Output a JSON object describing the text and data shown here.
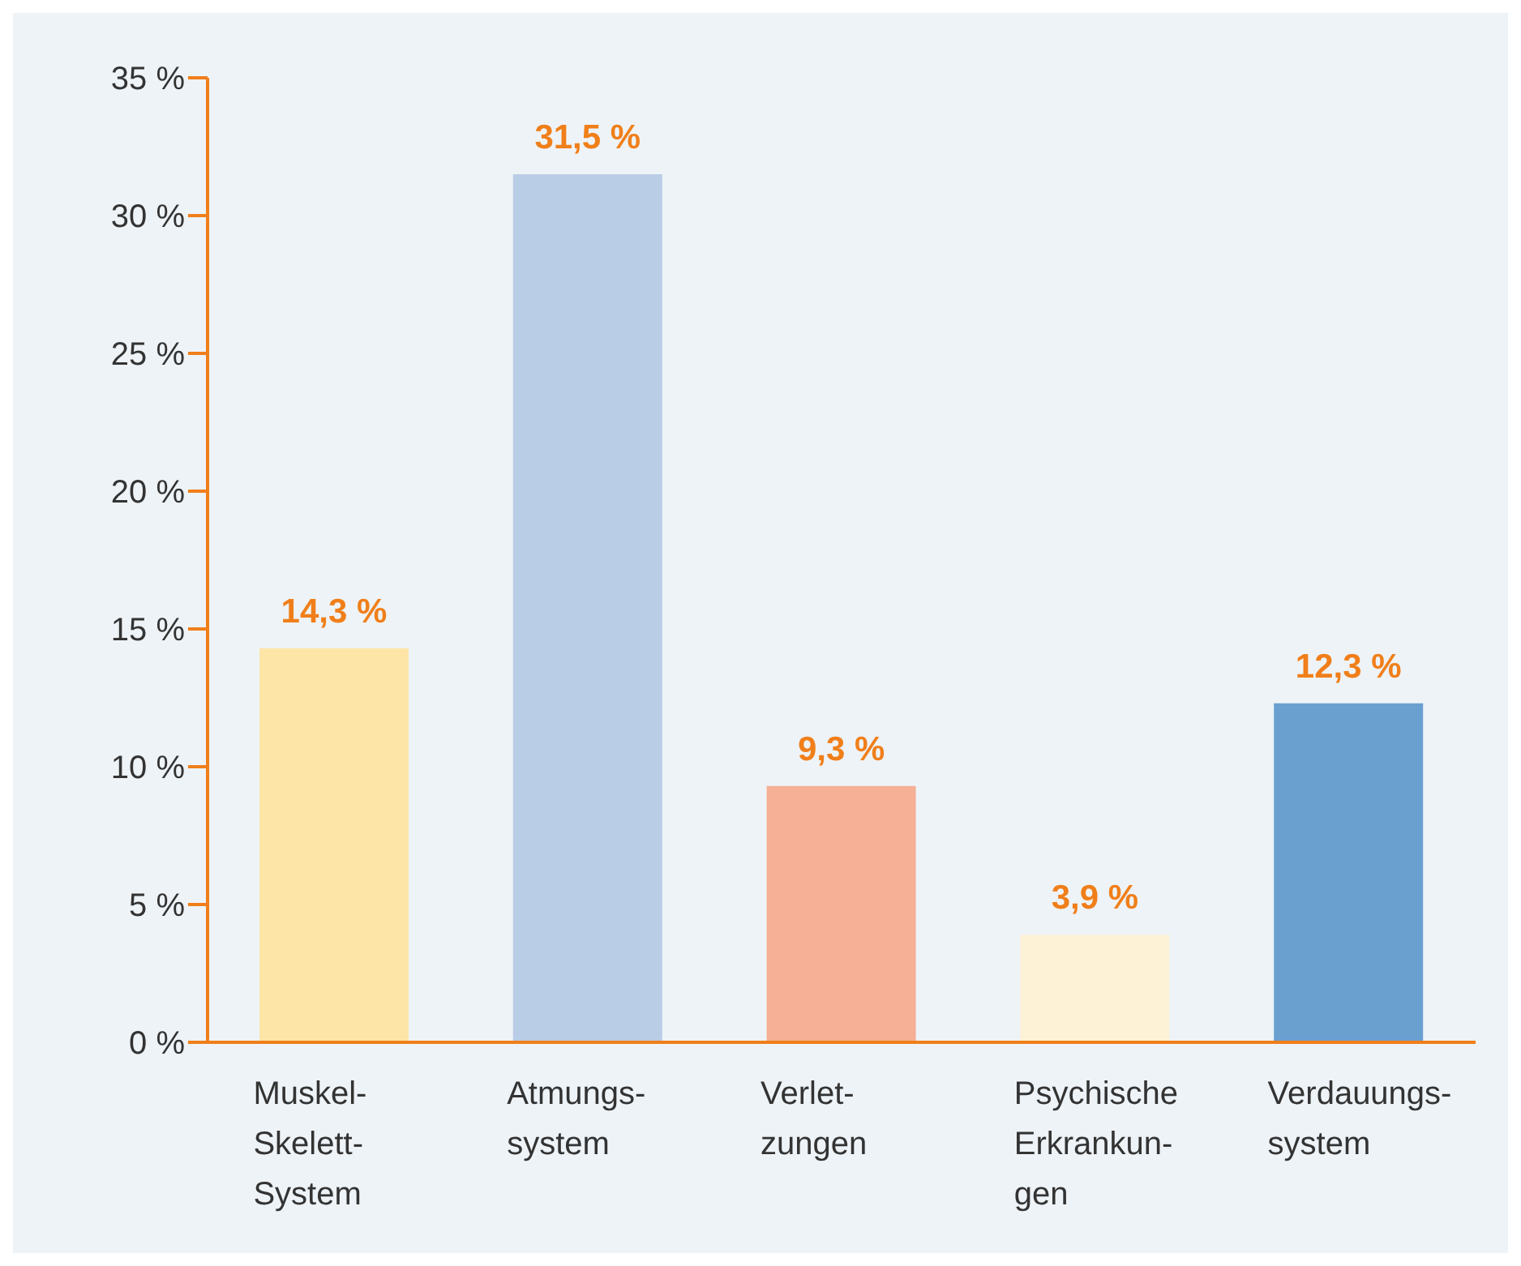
{
  "chart_data": {
    "type": "bar",
    "categories": [
      "Muskel-\nSkelett-\nSystem",
      "Atmungs-\nsystem",
      "Verlet-\nzungen",
      "Psychische\nErkrankun-\ngen",
      "Verdauungs-\nsystem"
    ],
    "values": [
      14.3,
      31.5,
      9.3,
      3.9,
      12.3
    ],
    "colors": [
      "#fde5a8",
      "#b9cde6",
      "#f5b096",
      "#fdf1d6",
      "#6aa0d0"
    ],
    "value_labels": [
      "14,3 %",
      "31,5 %",
      "9,3 %",
      "3,9 %",
      "12,3 %"
    ],
    "ylim": [
      0,
      35
    ],
    "yticks": [
      {
        "value": 0,
        "label": "0 %"
      },
      {
        "value": 5,
        "label": "5 %"
      },
      {
        "value": 10,
        "label": "10 %"
      },
      {
        "value": 15,
        "label": "15 %"
      },
      {
        "value": 20,
        "label": "20 %"
      },
      {
        "value": 25,
        "label": "25 %"
      },
      {
        "value": 30,
        "label": "30 %"
      },
      {
        "value": 35,
        "label": "35 %"
      }
    ],
    "grid": false,
    "legend": false
  }
}
